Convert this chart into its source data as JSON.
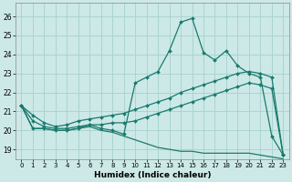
{
  "xlabel": "Humidex (Indice chaleur)",
  "background_color": "#cce9e7",
  "grid_color": "#aad4d0",
  "line_color": "#1a7a6e",
  "x_ticks": [
    0,
    1,
    2,
    3,
    4,
    5,
    6,
    7,
    8,
    9,
    10,
    11,
    12,
    13,
    14,
    15,
    16,
    17,
    18,
    19,
    20,
    21,
    22,
    23
  ],
  "y_ticks": [
    19,
    20,
    21,
    22,
    23,
    24,
    25,
    26
  ],
  "ylim": [
    18.5,
    26.7
  ],
  "xlim": [
    -0.5,
    23.5
  ],
  "series1_y": [
    21.3,
    20.1,
    20.1,
    20.0,
    20.0,
    20.1,
    20.3,
    20.1,
    20.0,
    19.8,
    22.5,
    22.8,
    23.1,
    24.2,
    25.7,
    25.9,
    24.1,
    23.7,
    24.2,
    23.4,
    23.0,
    22.8,
    19.7,
    18.7
  ],
  "series2_y": [
    21.3,
    20.8,
    20.4,
    20.2,
    20.3,
    20.5,
    20.6,
    20.7,
    20.8,
    20.9,
    21.1,
    21.3,
    21.5,
    21.7,
    22.0,
    22.2,
    22.4,
    22.6,
    22.8,
    23.0,
    23.1,
    23.0,
    22.8,
    18.7
  ],
  "series3_y": [
    21.3,
    20.5,
    20.2,
    20.1,
    20.1,
    20.2,
    20.3,
    20.3,
    20.4,
    20.4,
    20.5,
    20.7,
    20.9,
    21.1,
    21.3,
    21.5,
    21.7,
    21.9,
    22.1,
    22.3,
    22.5,
    22.4,
    22.2,
    18.7
  ],
  "series4_y": [
    21.3,
    20.1,
    20.1,
    20.0,
    20.0,
    20.1,
    20.2,
    20.0,
    19.9,
    19.7,
    19.5,
    19.3,
    19.1,
    19.0,
    18.9,
    18.9,
    18.8,
    18.8,
    18.8,
    18.8,
    18.8,
    18.7,
    18.6,
    18.5
  ]
}
